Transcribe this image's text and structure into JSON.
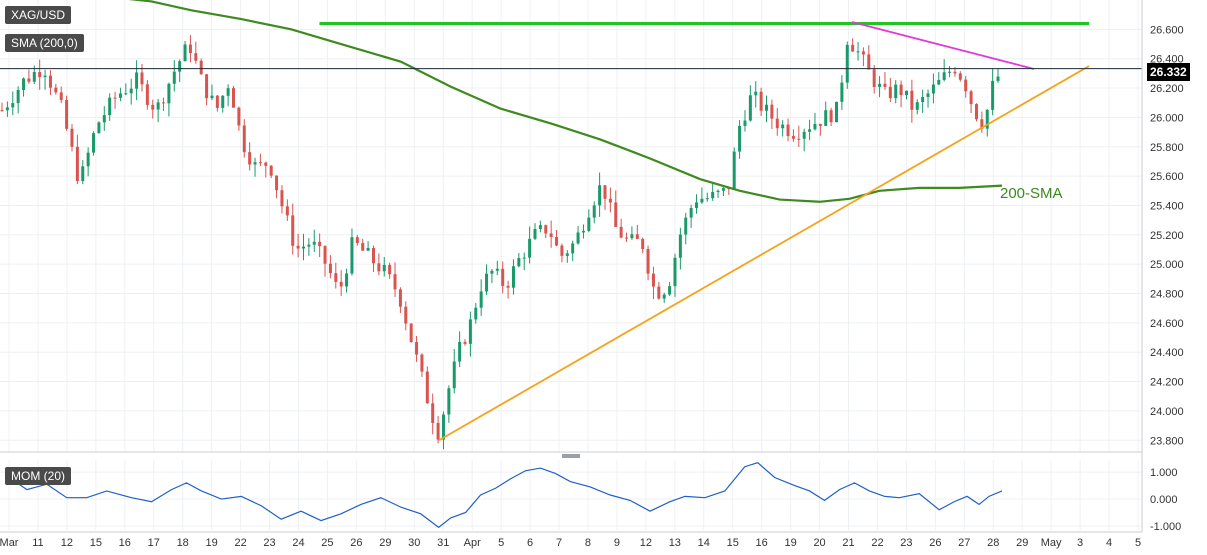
{
  "symbol": "XAG/USD",
  "indicator_label": "SMA (200,0)",
  "current_price": "26.332",
  "momentum_label": "MOM (20)",
  "annotation": "200-SMA",
  "colors": {
    "up": "#1a9a6a",
    "down": "#d9534f",
    "sma": "#3e8a1e",
    "resistance": "#22c422",
    "falling_trendline": "#e23ad8",
    "rising_trendline": "#f5a31a",
    "momentum": "#1f5fc8",
    "grid": "#eef1f4"
  },
  "chart_data": [
    {
      "type": "candlestick",
      "title": "XAG/USD",
      "y_ticks": [
        "23.800",
        "24.000",
        "24.200",
        "24.400",
        "24.600",
        "24.800",
        "25.000",
        "25.200",
        "25.400",
        "25.600",
        "25.800",
        "26.000",
        "26.200",
        "26.400",
        "26.600"
      ],
      "ylim": [
        23.72,
        26.8
      ],
      "x_ticks": [
        "Mar",
        "11",
        "12",
        "15",
        "16",
        "17",
        "18",
        "19",
        "22",
        "23",
        "24",
        "25",
        "26",
        "29",
        "30",
        "31",
        "Apr",
        "5",
        "6",
        "7",
        "8",
        "9",
        "12",
        "13",
        "14",
        "15",
        "16",
        "19",
        "20",
        "21",
        "22",
        "23",
        "26",
        "27",
        "28",
        "29",
        "May",
        "3",
        "4",
        "5"
      ],
      "current_price": 26.332,
      "price_path": [
        [
          0,
          26.05
        ],
        [
          22,
          26.25
        ],
        [
          42,
          26.35
        ],
        [
          60,
          26.05
        ],
        [
          78,
          25.55
        ],
        [
          95,
          25.95
        ],
        [
          115,
          26.15
        ],
        [
          135,
          26.25
        ],
        [
          155,
          26.05
        ],
        [
          175,
          26.35
        ],
        [
          188,
          26.5
        ],
        [
          200,
          26.25
        ],
        [
          215,
          26.05
        ],
        [
          228,
          26.25
        ],
        [
          240,
          25.85
        ],
        [
          255,
          25.65
        ],
        [
          268,
          25.7
        ],
        [
          283,
          25.35
        ],
        [
          295,
          25.1
        ],
        [
          310,
          25.15
        ],
        [
          325,
          25.0
        ],
        [
          338,
          24.8
        ],
        [
          352,
          25.15
        ],
        [
          368,
          25.05
        ],
        [
          383,
          24.95
        ],
        [
          398,
          24.8
        ],
        [
          410,
          24.5
        ],
        [
          422,
          24.2
        ],
        [
          430,
          24.0
        ],
        [
          438,
          23.85
        ],
        [
          448,
          24.15
        ],
        [
          458,
          24.4
        ],
        [
          470,
          24.6
        ],
        [
          480,
          24.85
        ],
        [
          492,
          24.95
        ],
        [
          505,
          24.85
        ],
        [
          520,
          25.05
        ],
        [
          535,
          25.2
        ],
        [
          548,
          25.25
        ],
        [
          560,
          25.05
        ],
        [
          575,
          25.15
        ],
        [
          590,
          25.4
        ],
        [
          602,
          25.55
        ],
        [
          615,
          25.25
        ],
        [
          628,
          25.15
        ],
        [
          642,
          25.15
        ],
        [
          655,
          24.8
        ],
        [
          668,
          24.85
        ],
        [
          680,
          25.2
        ],
        [
          695,
          25.45
        ],
        [
          710,
          25.45
        ],
        [
          728,
          25.5
        ],
        [
          740,
          25.95
        ],
        [
          752,
          26.15
        ],
        [
          765,
          26.05
        ],
        [
          780,
          25.95
        ],
        [
          795,
          25.9
        ],
        [
          810,
          25.95
        ],
        [
          825,
          26.0
        ],
        [
          838,
          26.05
        ],
        [
          848,
          26.55
        ],
        [
          858,
          26.45
        ],
        [
          870,
          26.3
        ],
        [
          885,
          26.15
        ],
        [
          900,
          26.2
        ],
        [
          915,
          26.05
        ],
        [
          928,
          26.15
        ],
        [
          942,
          26.25
        ],
        [
          955,
          26.35
        ],
        [
          965,
          26.25
        ],
        [
          975,
          26.05
        ],
        [
          985,
          25.95
        ],
        [
          993,
          26.2
        ],
        [
          1003,
          26.33
        ]
      ],
      "series": [
        {
          "name": "SMA (200,0)",
          "points": [
            [
              0,
              26.85
            ],
            [
              60,
              26.83
            ],
            [
              110,
              26.82
            ],
            [
              150,
              26.79
            ],
            [
              190,
              26.73
            ],
            [
              240,
              26.67
            ],
            [
              290,
              26.6
            ],
            [
              340,
              26.5
            ],
            [
              400,
              26.38
            ],
            [
              450,
              26.21
            ],
            [
              500,
              26.06
            ],
            [
              550,
              25.96
            ],
            [
              600,
              25.85
            ],
            [
              650,
              25.72
            ],
            [
              700,
              25.58
            ],
            [
              740,
              25.5
            ],
            [
              780,
              25.44
            ],
            [
              820,
              25.425
            ],
            [
              850,
              25.445
            ],
            [
              880,
              25.5
            ],
            [
              920,
              25.52
            ],
            [
              960,
              25.52
            ],
            [
              1003,
              25.535
            ]
          ]
        },
        {
          "name": "resistance",
          "points": [
            [
              11,
              26.64
            ],
            [
              40,
              26.64
            ]
          ]
        },
        {
          "name": "falling trendline",
          "points": [
            [
              21,
              26.65
            ],
            [
              40,
              26.33
            ]
          ]
        },
        {
          "name": "rising trendline",
          "points": [
            [
              31,
              23.8
            ],
            [
              45,
              26.35
            ]
          ]
        }
      ]
    },
    {
      "type": "line",
      "title": "MOM (20)",
      "y_ticks": [
        "1.000",
        "0.000",
        "-1.000"
      ],
      "ylim": [
        -1.15,
        1.45
      ],
      "series": [
        {
          "name": "MOM (20)",
          "points": [
            [
              5,
              0.85
            ],
            [
              25,
              0.35
            ],
            [
              45,
              0.55
            ],
            [
              65,
              0.05
            ],
            [
              85,
              0.05
            ],
            [
              105,
              0.3
            ],
            [
              130,
              0.05
            ],
            [
              150,
              -0.1
            ],
            [
              170,
              0.35
            ],
            [
              185,
              0.6
            ],
            [
              200,
              0.3
            ],
            [
              220,
              0.0
            ],
            [
              240,
              0.1
            ],
            [
              260,
              -0.25
            ],
            [
              280,
              -0.75
            ],
            [
              300,
              -0.45
            ],
            [
              320,
              -0.8
            ],
            [
              340,
              -0.55
            ],
            [
              360,
              -0.2
            ],
            [
              380,
              0.05
            ],
            [
              400,
              -0.3
            ],
            [
              420,
              -0.55
            ],
            [
              438,
              -1.05
            ],
            [
              450,
              -0.7
            ],
            [
              465,
              -0.5
            ],
            [
              480,
              0.15
            ],
            [
              495,
              0.4
            ],
            [
              510,
              0.75
            ],
            [
              525,
              1.05
            ],
            [
              540,
              1.15
            ],
            [
              555,
              0.95
            ],
            [
              570,
              0.65
            ],
            [
              590,
              0.45
            ],
            [
              610,
              0.15
            ],
            [
              630,
              -0.05
            ],
            [
              650,
              -0.45
            ],
            [
              670,
              -0.1
            ],
            [
              685,
              0.1
            ],
            [
              705,
              0.05
            ],
            [
              725,
              0.3
            ],
            [
              745,
              1.2
            ],
            [
              758,
              1.35
            ],
            [
              775,
              0.8
            ],
            [
              795,
              0.5
            ],
            [
              810,
              0.3
            ],
            [
              825,
              -0.05
            ],
            [
              840,
              0.35
            ],
            [
              855,
              0.6
            ],
            [
              870,
              0.3
            ],
            [
              885,
              0.1
            ],
            [
              900,
              0.05
            ],
            [
              920,
              0.2
            ],
            [
              940,
              -0.4
            ],
            [
              955,
              -0.1
            ],
            [
              968,
              0.1
            ],
            [
              980,
              -0.2
            ],
            [
              990,
              0.1
            ],
            [
              1003,
              0.3
            ]
          ]
        }
      ]
    }
  ]
}
